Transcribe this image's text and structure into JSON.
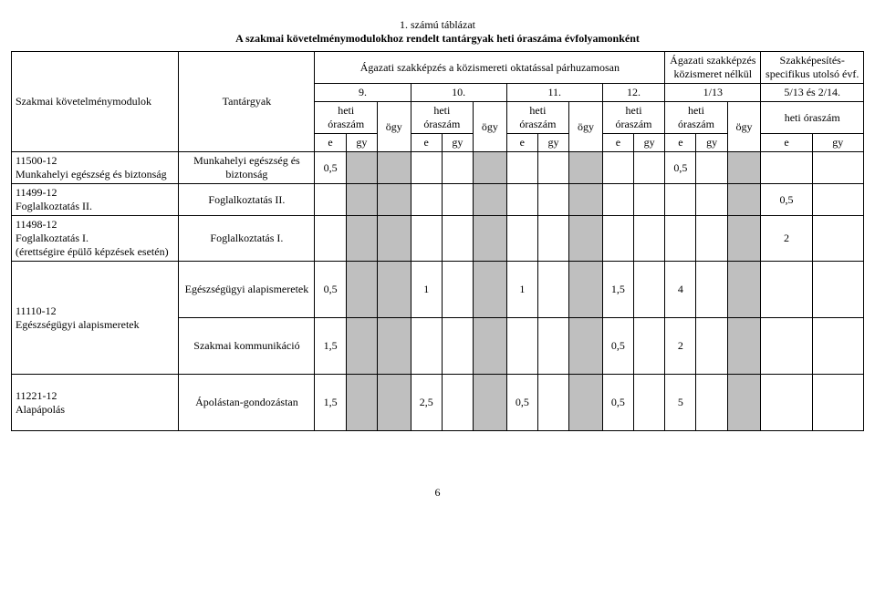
{
  "title": "1. számú táblázat",
  "subtitle": "A szakmai követelménymodulokhoz rendelt tantárgyak heti óraszáma évfolyamonként",
  "header": {
    "col_mod": "Szakmai követelménymodulok",
    "col_sub": "Tantárgyak",
    "group_a": "Ágazati szakképzés a közismereti oktatással párhuzamosan",
    "group_b": "Ágazati szakképzés közismeret nélkül",
    "group_c": "Szakképesítés-specifikus utolsó évf.",
    "y9": "9.",
    "y10": "10.",
    "y11": "11.",
    "y12": "12.",
    "y113": "1/13",
    "y514": "5/13 és 2/14.",
    "heti": "heti óraszám",
    "ogy": "ögy",
    "e": "e",
    "gy": "gy"
  },
  "rows": [
    {
      "module": "11500-12\nMunkahelyi egészség és biztonság",
      "subject": "Munkahelyi egészség és biztonság",
      "cells": {
        "c9e": "0,5",
        "c113e": "0,5"
      }
    },
    {
      "module": "11499-12\nFoglalkoztatás II.",
      "subject": "Foglalkoztatás II.",
      "cells": {
        "c514e": "0,5"
      }
    },
    {
      "module": "11498-12\nFoglalkoztatás I.\n(érettségire épülő képzések esetén)",
      "subject": "Foglalkoztatás I.",
      "cells": {
        "c514e": "2"
      }
    },
    {
      "module": "11110-12\nEgészségügyi alapismeretek",
      "subjects": [
        {
          "subject": "Egészségügyi alapismeretek",
          "cells": {
            "c9e": "0,5",
            "c10e": "1",
            "c11e": "1",
            "c12e": "1,5",
            "c113e": "4"
          }
        },
        {
          "subject": "Szakmai kommunikáció",
          "cells": {
            "c9e": "1,5",
            "c12e": "0,5",
            "c113e": "2"
          }
        }
      ]
    },
    {
      "module": "11221-12\nAlapápolás",
      "subject": "Ápolástan-gondozástan",
      "cells": {
        "c9e": "1,5",
        "c10e": "2,5",
        "c11e": "0,5",
        "c12e": "0,5",
        "c113e": "5"
      }
    }
  ],
  "pageNumber": "6"
}
